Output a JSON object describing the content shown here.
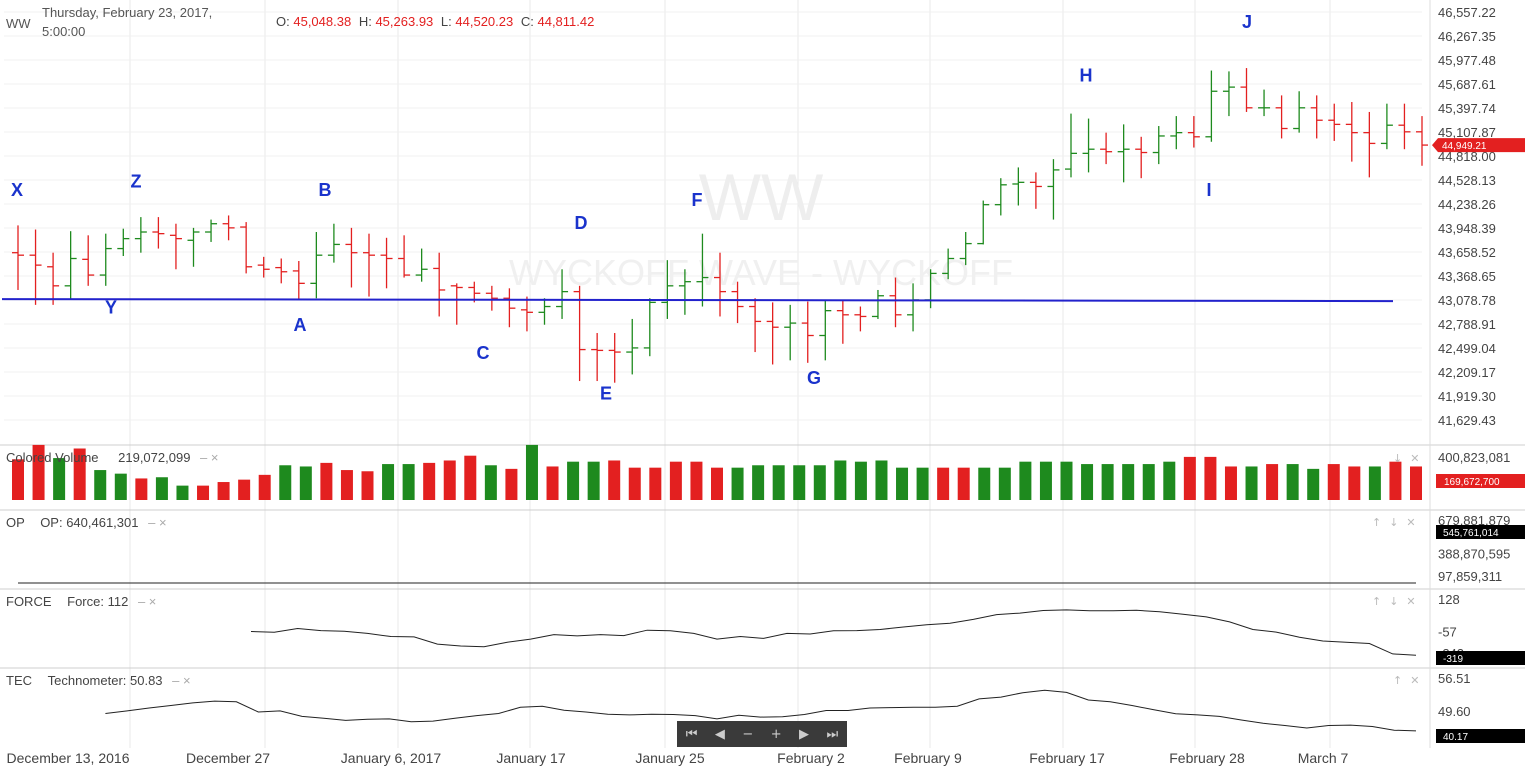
{
  "header": {
    "symbol": "WW",
    "date_line1": "Thursday, February 23, 2017,",
    "date_line2": "5:00:00"
  },
  "ohlc": {
    "o_label": "O:",
    "o": "45,048.38",
    "h_label": "H:",
    "h": "45,263.93",
    "l_label": "L:",
    "l": "44,520.23",
    "c_label": "C:",
    "c": "44,811.42"
  },
  "colors": {
    "up": "#1e8a1e",
    "down": "#e32020",
    "support": "#2222cc",
    "wave_label": "#1a33cc"
  },
  "watermark": {
    "line1": "WW",
    "line2": "WYCKOFF WAVE - WYCKOFF"
  },
  "panels": {
    "volume": {
      "name": "Colored Volume",
      "value": "219,072,099",
      "current": "169,672,700",
      "axis": [
        "400,823,081"
      ]
    },
    "op": {
      "name": "OP",
      "title": "OP: 640,461,301",
      "current": "545,761,014",
      "axis": [
        "679,881,879",
        "388,870,595",
        "97,859,311"
      ]
    },
    "force": {
      "name": "FORCE",
      "title": "Force: 112",
      "current": "-319",
      "axis": [
        "128",
        "-57",
        "-242"
      ]
    },
    "tec": {
      "name": "TEC",
      "title": "Technometer: 50.83",
      "current": "40.17",
      "axis": [
        "56.51",
        "49.60",
        "42.69"
      ]
    }
  },
  "chart_data": [
    {
      "type": "ohlc-bar",
      "price_axis": [
        "46,557.22",
        "46,267.35",
        "45,977.48",
        "45,687.61",
        "45,397.74",
        "45,107.87",
        "44,818.00",
        "44,528.13",
        "44,238.26",
        "43,948.39",
        "43,658.52",
        "43,368.65",
        "43,078.78",
        "42,788.91",
        "42,499.04",
        "42,209.17",
        "41,919.30",
        "41,629.43"
      ],
      "current_price": "44,949.21",
      "ylim": [
        41500,
        46650
      ],
      "x_labels": [
        "December 13, 2016",
        "December 27",
        "January 6, 2017",
        "January 17",
        "January 25",
        "February 2",
        "February 9",
        "February 17",
        "February 28",
        "March 7"
      ],
      "support_line": 43078,
      "bars": [
        [
          43650,
          43980,
          43200,
          43620
        ],
        [
          43620,
          43930,
          43020,
          43500
        ],
        [
          43480,
          43650,
          43020,
          43250
        ],
        [
          43250,
          43910,
          43080,
          43580
        ],
        [
          43570,
          43860,
          43250,
          43380
        ],
        [
          43380,
          43880,
          43250,
          43700
        ],
        [
          43700,
          43940,
          43610,
          43820
        ],
        [
          43820,
          44080,
          43650,
          43900
        ],
        [
          43900,
          44080,
          43700,
          43880
        ],
        [
          43860,
          44000,
          43450,
          43820
        ],
        [
          43800,
          43950,
          43480,
          43900
        ],
        [
          43900,
          44050,
          43780,
          44000
        ],
        [
          44000,
          44100,
          43800,
          43950
        ],
        [
          43960,
          44020,
          43400,
          43480
        ],
        [
          43500,
          43600,
          43350,
          43450
        ],
        [
          43470,
          43580,
          43280,
          43420
        ],
        [
          43430,
          43550,
          43080,
          43280
        ],
        [
          43280,
          43900,
          43100,
          43620
        ],
        [
          43620,
          44000,
          43530,
          43750
        ],
        [
          43750,
          43950,
          43230,
          43650
        ],
        [
          43650,
          43880,
          43120,
          43620
        ],
        [
          43620,
          43830,
          43220,
          43580
        ],
        [
          43580,
          43860,
          43350,
          43380
        ],
        [
          43380,
          43700,
          43300,
          43450
        ],
        [
          43460,
          43650,
          42880,
          43200
        ],
        [
          43250,
          43280,
          42780,
          43230
        ],
        [
          43230,
          43300,
          43050,
          43160
        ],
        [
          43160,
          43250,
          42950,
          43100
        ],
        [
          43100,
          43220,
          42750,
          42980
        ],
        [
          42960,
          43120,
          42700,
          42930
        ],
        [
          42930,
          43100,
          42780,
          43000
        ],
        [
          43000,
          43450,
          42850,
          43180
        ],
        [
          43180,
          43250,
          42100,
          42480
        ],
        [
          42480,
          42680,
          42100,
          42470
        ],
        [
          42470,
          42680,
          42080,
          42450
        ],
        [
          42450,
          42850,
          42180,
          42500
        ],
        [
          42500,
          43100,
          42400,
          43050
        ],
        [
          43050,
          43560,
          42850,
          43250
        ],
        [
          43250,
          43450,
          42900,
          43300
        ],
        [
          43300,
          43880,
          43000,
          43350
        ],
        [
          43350,
          43650,
          42880,
          43180
        ],
        [
          43180,
          43300,
          42800,
          43000
        ],
        [
          43000,
          43100,
          42450,
          42820
        ],
        [
          42820,
          43050,
          42300,
          42750
        ],
        [
          42750,
          43020,
          42350,
          42800
        ],
        [
          42800,
          43060,
          42320,
          42650
        ],
        [
          42650,
          43080,
          42350,
          42950
        ],
        [
          42950,
          43080,
          42550,
          42900
        ],
        [
          42900,
          43000,
          42700,
          42880
        ],
        [
          42880,
          43200,
          42850,
          43130
        ],
        [
          43130,
          43350,
          42750,
          42900
        ],
        [
          42900,
          43280,
          42700,
          43080
        ],
        [
          43080,
          43450,
          42980,
          43400
        ],
        [
          43400,
          43700,
          43330,
          43580
        ],
        [
          43580,
          43900,
          43500,
          43760
        ],
        [
          43760,
          44280,
          43750,
          44230
        ],
        [
          44230,
          44550,
          44100,
          44470
        ],
        [
          44480,
          44680,
          44220,
          44500
        ],
        [
          44500,
          44620,
          44180,
          44450
        ],
        [
          44450,
          44780,
          44050,
          44650
        ],
        [
          44660,
          45330,
          44560,
          44850
        ],
        [
          44850,
          45270,
          44620,
          44900
        ],
        [
          44900,
          45100,
          44720,
          44870
        ],
        [
          44870,
          45200,
          44500,
          44900
        ],
        [
          44900,
          45050,
          44550,
          44860
        ],
        [
          44860,
          45180,
          44720,
          45060
        ],
        [
          45060,
          45300,
          44900,
          45100
        ],
        [
          45100,
          45300,
          44920,
          45050
        ],
        [
          45050,
          45850,
          44990,
          45600
        ],
        [
          45600,
          45840,
          45300,
          45650
        ],
        [
          45650,
          45880,
          45350,
          45400
        ],
        [
          45400,
          45620,
          45300,
          45400
        ],
        [
          45400,
          45550,
          45030,
          45150
        ],
        [
          45150,
          45600,
          45100,
          45400
        ],
        [
          45400,
          45550,
          45030,
          45250
        ],
        [
          45250,
          45450,
          45000,
          45200
        ],
        [
          45200,
          45470,
          44750,
          45100
        ],
        [
          45100,
          45350,
          44560,
          44970
        ],
        [
          44970,
          45450,
          44900,
          45190
        ],
        [
          45190,
          45450,
          44900,
          45110
        ],
        [
          45110,
          45300,
          44700,
          44950
        ]
      ],
      "wave_points": [
        {
          "label": "X",
          "bar": 0,
          "price": 44420
        },
        {
          "label": "Y",
          "bar": 4,
          "price": 43000
        },
        {
          "label": "Z",
          "bar": 5,
          "price": 44520
        },
        {
          "label": "A",
          "bar": 12,
          "price": 42790
        },
        {
          "label": "B",
          "bar": 13,
          "price": 44420
        },
        {
          "label": "C",
          "bar": 20,
          "price": 42450
        },
        {
          "label": "D",
          "bar": 24,
          "price": 44020
        },
        {
          "label": "E",
          "bar": 26,
          "price": 41960
        },
        {
          "label": "F",
          "bar": 30,
          "price": 44300
        },
        {
          "label": "G",
          "bar": 35,
          "price": 42150
        },
        {
          "label": "H",
          "bar": 46,
          "price": 45800
        },
        {
          "label": "I",
          "bar": 51,
          "price": 44420
        },
        {
          "label": "J",
          "bar": 53,
          "price": 46450
        }
      ]
    },
    {
      "type": "bar",
      "name": "Colored Volume",
      "ylim": [
        0,
        400823081
      ],
      "values": [
        340,
        460,
        350,
        430,
        250,
        220,
        180,
        190,
        120,
        120,
        150,
        170,
        210,
        290,
        280,
        310,
        250,
        240,
        300,
        300,
        310,
        330,
        370,
        290,
        260,
        460,
        280,
        320,
        320,
        330,
        270,
        270,
        320,
        320,
        270,
        270,
        290,
        290,
        290,
        290,
        330,
        320,
        330,
        270,
        270,
        270,
        270,
        270,
        270,
        320,
        320,
        320,
        300,
        300,
        300,
        300,
        320,
        360,
        360,
        280,
        280,
        300,
        300,
        260,
        300,
        280,
        280,
        320,
        280
      ],
      "value_scale": 1000000,
      "colors": [
        "r",
        "r",
        "g",
        "r",
        "g",
        "g",
        "r",
        "g",
        "g",
        "r",
        "r",
        "r",
        "r",
        "g",
        "g",
        "r",
        "r",
        "r",
        "g",
        "g",
        "r",
        "r",
        "r",
        "g",
        "r",
        "g",
        "r",
        "g",
        "g",
        "r",
        "r",
        "r",
        "r",
        "r",
        "r",
        "g",
        "g",
        "g",
        "g",
        "g",
        "g",
        "g",
        "g",
        "g",
        "g",
        "r",
        "r",
        "g",
        "g",
        "g",
        "g",
        "g",
        "g",
        "g",
        "g",
        "g",
        "g",
        "r",
        "r",
        "r",
        "g",
        "r",
        "g",
        "g",
        "r",
        "r",
        "g",
        "r",
        "r"
      ]
    },
    {
      "type": "line",
      "name": "OP",
      "ylim": [
        0,
        720000000
      ],
      "values": [
        100,
        60,
        60,
        80,
        110,
        170,
        160,
        180,
        190,
        200,
        180,
        170,
        140,
        150,
        150,
        160,
        150,
        110,
        120,
        140,
        170,
        200,
        230,
        230,
        210,
        240,
        250,
        250,
        250,
        260,
        260,
        280,
        290,
        320,
        350,
        380,
        380,
        390,
        420,
        440,
        460,
        480,
        510,
        560,
        620,
        660,
        690,
        690,
        700,
        720,
        720,
        720,
        710,
        700,
        690,
        680,
        670,
        680,
        650,
        640
      ]
    },
    {
      "type": "line",
      "name": "FORCE",
      "ylim": [
        -330,
        135
      ],
      "values": [
        null,
        null,
        null,
        null,
        null,
        null,
        null,
        null,
        null,
        null,
        -105,
        -112,
        -82,
        -98,
        -104,
        -120,
        -145,
        -148,
        -205,
        -220,
        -225,
        -190,
        -165,
        -130,
        -140,
        -130,
        -138,
        -95,
        -100,
        -120,
        -165,
        -145,
        -160,
        -120,
        -125,
        -100,
        -98,
        -90,
        -70,
        -52,
        -40,
        -10,
        28,
        40,
        60,
        65,
        58,
        58,
        62,
        50,
        30,
        10,
        -30,
        -90,
        -110,
        -150,
        -180,
        -190,
        -200,
        -282,
        -292
      ]
    },
    {
      "type": "line",
      "name": "TEC",
      "ylim": [
        40.5,
        57
      ],
      "values": [
        null,
        null,
        null,
        null,
        47.8,
        48.5,
        49.3,
        50.0,
        50.7,
        51.2,
        51.0,
        48.2,
        48.5,
        47.0,
        46.5,
        45.9,
        46.2,
        46.3,
        45.5,
        45.7,
        46.5,
        47.2,
        47.8,
        49.5,
        49.8,
        48.7,
        48.2,
        47.6,
        47.4,
        47.6,
        47.5,
        47.2,
        46.3,
        47.3,
        46.8,
        46.9,
        47.5,
        48.6,
        48.6,
        49.3,
        49.4,
        49.5,
        49.5,
        49.8,
        51.8,
        52.3,
        53.5,
        54.2,
        53.6,
        51.5,
        51.0,
        50.0,
        48.8,
        47.7,
        47.4,
        47.0,
        46.0,
        45.1,
        44.5,
        43.8,
        44.5,
        44.6,
        44.2,
        43.2,
        43.0
      ]
    }
  ],
  "nav": {
    "first": "⏮",
    "prev": "◀",
    "zoom_out": "−",
    "zoom_in": "+",
    "next": "▶",
    "last": "⏭"
  }
}
